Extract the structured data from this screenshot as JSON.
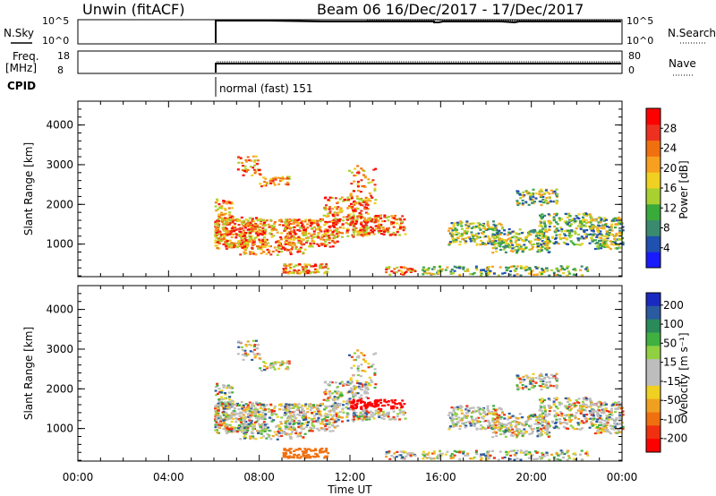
{
  "header": {
    "station": "Unwin (fitACF)",
    "beam_info": "Beam 06  16/Dec/2017 - 17/Dec/2017"
  },
  "panels": {
    "nsky": {
      "label": "N.Sky",
      "ticks": [
        "10^5",
        "10^0"
      ],
      "right_label": "N.Search",
      "right_ticks": [
        "10^5",
        "10^0"
      ]
    },
    "freq": {
      "label_line1": "Freq.",
      "label_line2": "[MHz]",
      "ticks": [
        "18",
        "8"
      ],
      "right_label": "Nave",
      "right_ticks": [
        "80",
        "0"
      ]
    },
    "cpid": {
      "label": "CPID",
      "mode_text": "normal (fast) 151"
    }
  },
  "chart_data": [
    {
      "type": "heatmap",
      "name": "power",
      "ylabel": "Slant Range [km]",
      "yticks": [
        "1000",
        "2000",
        "3000",
        "4000"
      ],
      "ylim": [
        180,
        4600
      ],
      "xlim_hours": [
        0,
        24
      ],
      "colorbar": {
        "label": "Power [dB]",
        "ticks": [
          "4",
          "8",
          "12",
          "16",
          "20",
          "24",
          "28"
        ],
        "colors": [
          "#1a1aff",
          "#2050b0",
          "#3a8a70",
          "#3aaa3a",
          "#a8d030",
          "#f0d020",
          "#f7a020",
          "#f07010",
          "#ee3020",
          "#ff0000"
        ]
      }
    },
    {
      "type": "heatmap",
      "name": "velocity",
      "ylabel": "Slant Range [km]",
      "yticks": [
        "1000",
        "2000",
        "3000",
        "4000"
      ],
      "ylim": [
        180,
        4600
      ],
      "xlim_hours": [
        0,
        24
      ],
      "colorbar": {
        "label": "Velocity [m s⁻¹]",
        "ticks": [
          "200",
          "100",
          "50",
          "15",
          "-15",
          "-50",
          "-100",
          "-200"
        ],
        "colors": [
          "#1a2ac0",
          "#2a5aa0",
          "#2a8a5a",
          "#40b040",
          "#90d040",
          "#bdbdbd",
          "#bdbdbd",
          "#f0d020",
          "#f0a020",
          "#f07010",
          "#f03010",
          "#ff0000"
        ]
      }
    }
  ],
  "xaxis": {
    "label": "Time UT",
    "ticks": [
      "00:00",
      "04:00",
      "08:00",
      "12:00",
      "16:00",
      "20:00",
      "00:00"
    ]
  }
}
